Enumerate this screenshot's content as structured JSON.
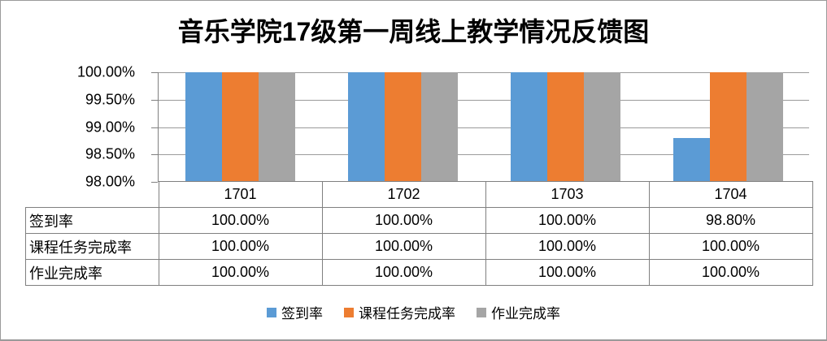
{
  "chart_data": {
    "type": "bar",
    "title": "音乐学院17级第一周线上教学情况反馈图",
    "categories": [
      "1701",
      "1702",
      "1703",
      "1704"
    ],
    "series": [
      {
        "name": "签到率",
        "color": "#5B9BD5",
        "values": [
          100,
          100,
          100,
          98.8
        ],
        "labels": [
          "100.00%",
          "100.00%",
          "100.00%",
          "98.80%"
        ]
      },
      {
        "name": "课程任务完成率",
        "color": "#ED7D31",
        "values": [
          100,
          100,
          100,
          100
        ],
        "labels": [
          "100.00%",
          "100.00%",
          "100.00%",
          "100.00%"
        ]
      },
      {
        "name": "作业完成率",
        "color": "#A5A5A5",
        "values": [
          100,
          100,
          100,
          100
        ],
        "labels": [
          "100.00%",
          "100.00%",
          "100.00%",
          "100.00%"
        ]
      }
    ],
    "y_axis": {
      "min": 98,
      "max": 100,
      "tick_labels": [
        "100.00%",
        "99.50%",
        "99.00%",
        "98.50%",
        "98.00%"
      ],
      "tick_values": [
        100,
        99.5,
        99,
        98.5,
        98
      ]
    },
    "xlabel": "",
    "ylabel": "",
    "legend_position": "bottom",
    "gridlines": true,
    "data_table_shown": true
  },
  "colors": {
    "gridline": "#9b9b9b",
    "axis": "#808080",
    "table_border": "#808080",
    "frame_border": "#9a9a9a",
    "text": "#000000",
    "background": "#ffffff"
  }
}
